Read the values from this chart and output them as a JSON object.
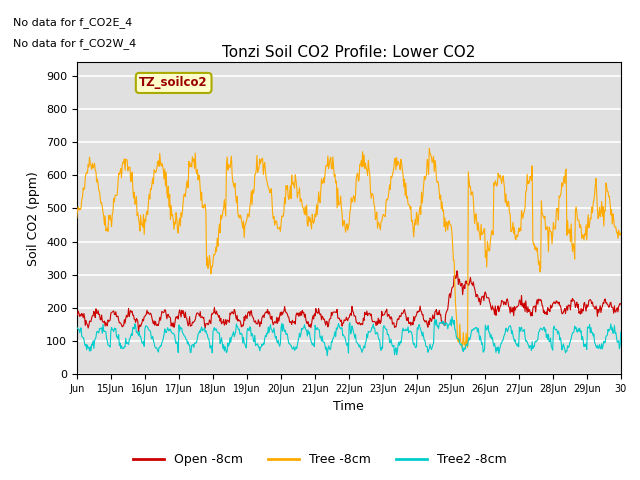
{
  "title": "Tonzi Soil CO2 Profile: Lower CO2",
  "ylabel": "Soil CO2 (ppm)",
  "xlabel": "Time",
  "top_left_line1": "No data for f_CO2E_4",
  "top_left_line2": "No data for f_CO2W_4",
  "legend_box_text": "TZ_soilco2",
  "ylim": [
    0,
    940
  ],
  "yticks": [
    0,
    100,
    200,
    300,
    400,
    500,
    600,
    700,
    800,
    900
  ],
  "color_open": "#cc0000",
  "color_tree": "#ffaa00",
  "color_tree2": "#00cccc",
  "legend_labels": [
    "Open -8cm",
    "Tree -8cm",
    "Tree2 -8cm"
  ],
  "bg_color": "#e0e0e0",
  "grid_color": "#ffffff",
  "n_points": 768
}
